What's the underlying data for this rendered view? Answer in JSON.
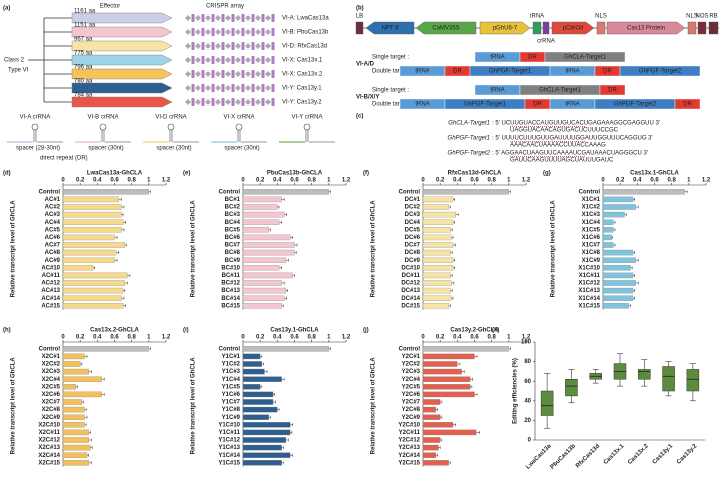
{
  "panel_a": {
    "label": "(a)",
    "effector_header": "Effector",
    "array_header": "CRISPR array",
    "class": "Class 2",
    "type": "Type VI",
    "rows": [
      {
        "size": "1161 aa",
        "name": "VI-A: LwaCas13a"
      },
      {
        "size": "1151 aa",
        "name": "VI-B: PbuCas13b"
      },
      {
        "size": "967 aa",
        "name": "VI-D: RfxCas13d"
      },
      {
        "size": "775 aa",
        "name": "VI-X: Cas13x.1"
      },
      {
        "size": "796 aa",
        "name": "VI-X: Cas13x.2"
      },
      {
        "size": "780 aa",
        "name": "VI-Y: Cas13y.1"
      },
      {
        "size": "784 aa",
        "name": "VI-Y: Cas13y.2"
      }
    ],
    "crrna": [
      "VI-A crRNA",
      "VI-B crRNA",
      "VI-D crRNA",
      "VI-X crRNA",
      "VI-Y crRNA"
    ],
    "spacer_labels": [
      "spacer (28-30nt)",
      "spacer (30nt)",
      "spacer (30nt)",
      "spacer (30nt)"
    ],
    "dr_label": "direct repeat (DR)"
  },
  "panel_b": {
    "label": "(b)",
    "construct": [
      "LB",
      "NPT II",
      "CaMV35S",
      "pGhU6-7",
      "tRNA",
      "crRNA",
      "pCitrOd",
      "NLS",
      "Cas13 Protein",
      "NLS",
      "NOS",
      "RB"
    ],
    "groups": [
      {
        "name": "VI-A/D",
        "single_label": "Single target :",
        "single": [
          "tRNA",
          "DR",
          "GhCLA-Target1"
        ],
        "double_label": "Double target :",
        "double": [
          "tRNA",
          "DR",
          "GhPGF-Target1",
          "tRNA",
          "DR",
          "GhPGF-Target2"
        ]
      },
      {
        "name": "VI-B/X/Y",
        "single_label": "Single target :",
        "single": [
          "tRNA",
          "GhCLA-Target1",
          "DR"
        ],
        "double_label": "Double target :",
        "double": [
          "tRNA",
          "GhPGF-Target1",
          "DR",
          "tRNA",
          "GhPGF-Target2",
          "DR"
        ]
      }
    ]
  },
  "panel_c": {
    "label": "(c)",
    "seqs": [
      {
        "name": "GhCLA-Target1",
        "seq": ": 5' UCUUGUACCAUGUUGUCACUGAGAAAGGCGAGGUU 3'",
        "comp": "UAGGUACAACAGUGACUCUUUCCGC"
      },
      {
        "name": "GhPGF-Target1",
        "seq": ": 5' UUUUCUUUGUUGAUUUUGGAUUGGUUUCAGGUG 3'",
        "comp": "AAACAACUAAAACCUUACCAAAG"
      },
      {
        "name": "GhPGF-Target2",
        "seq": ": 5' AGGAACUAAGUUCAAAAUCGAUAAACUAGGGCU 3'",
        "comp": "GAUUCAAGUUUUAGCUAUUUGAUC"
      }
    ]
  },
  "chart_data": [
    {
      "type": "bar",
      "panel": "(d)",
      "title": "LwaCas13a-GhCLA",
      "ylabel": "Relative transcript level of GhCLA",
      "color": "#f7d98c",
      "control_color": "#bdbdbd",
      "categories": [
        "Control",
        "AC#1",
        "AC#2",
        "AC#3",
        "AC#4",
        "AC#5",
        "AC#6",
        "AC#7",
        "AC#8",
        "AC#9",
        "AC#10",
        "AC#11",
        "AC#12",
        "AC#13",
        "AC#14",
        "AC#15"
      ],
      "values": [
        1.0,
        0.65,
        0.68,
        0.68,
        0.7,
        0.68,
        0.6,
        0.72,
        0.62,
        0.6,
        0.35,
        0.75,
        0.72,
        0.7,
        0.68,
        0.7
      ],
      "errors": [
        0.02,
        0.03,
        0.03,
        0.02,
        0.03,
        0.03,
        0.03,
        0.02,
        0.03,
        0.03,
        0.02,
        0.03,
        0.03,
        0.02,
        0.03,
        0.03
      ],
      "xlim": [
        0,
        1.2
      ],
      "xticks": [
        0,
        0.2,
        0.4,
        0.6,
        0.8,
        1,
        1.2
      ]
    },
    {
      "type": "bar",
      "panel": "(e)",
      "title": "PbuCas13b-GhCLA",
      "ylabel": "Relative transcript level of GhCLA",
      "color": "#f4c6d0",
      "control_color": "#bdbdbd",
      "categories": [
        "Control",
        "BC#1",
        "BC#2",
        "BC#3",
        "BC#4",
        "BC#5",
        "BC#6",
        "BC#7",
        "BC#8",
        "BC#9",
        "BC#10",
        "BC#11",
        "BC#12",
        "BC#13",
        "BC#14",
        "BC#15"
      ],
      "values": [
        1.0,
        0.45,
        0.4,
        0.48,
        0.42,
        0.3,
        0.55,
        0.6,
        0.6,
        0.5,
        0.42,
        0.58,
        0.45,
        0.5,
        0.48,
        0.45
      ],
      "errors": [
        0.02,
        0.03,
        0.02,
        0.03,
        0.03,
        0.02,
        0.03,
        0.03,
        0.02,
        0.03,
        0.03,
        0.02,
        0.03,
        0.02,
        0.03,
        0.02
      ],
      "xlim": [
        0,
        1.2
      ],
      "xticks": [
        0,
        0.2,
        0.4,
        0.6,
        0.8,
        1,
        1.2
      ]
    },
    {
      "type": "bar",
      "panel": "(f)",
      "title": "RfxCas13d-GhCLA",
      "ylabel": "Relative transcript level of GhCLA",
      "color": "#f7e3a3",
      "control_color": "#bdbdbd",
      "categories": [
        "Control",
        "DC#1",
        "DC#2",
        "DC#3",
        "DC#4",
        "DC#5",
        "DC#6",
        "DC#7",
        "DC#8",
        "DC#9",
        "DC#10",
        "DC#11",
        "DC#12",
        "DC#13",
        "DC#14",
        "DC#15"
      ],
      "values": [
        1.0,
        0.35,
        0.3,
        0.38,
        0.35,
        0.32,
        0.33,
        0.35,
        0.32,
        0.35,
        0.35,
        0.32,
        0.33,
        0.32,
        0.33,
        0.3
      ],
      "errors": [
        0.02,
        0.02,
        0.02,
        0.03,
        0.02,
        0.02,
        0.02,
        0.03,
        0.02,
        0.02,
        0.02,
        0.02,
        0.03,
        0.02,
        0.02,
        0.02
      ],
      "xlim": [
        0,
        1.2
      ],
      "xticks": [
        0,
        0.2,
        0.4,
        0.6,
        0.8,
        1,
        1.2
      ]
    },
    {
      "type": "bar",
      "panel": "(g)",
      "title": "Cas13x.1-GhCLA",
      "ylabel": "Relative transcript level of GhCLA",
      "color": "#7fc4dc",
      "control_color": "#bdbdbd",
      "categories": [
        "Control",
        "X1C#1",
        "X1C#2",
        "X1C#3",
        "X1C#4",
        "X1C#5",
        "X1C#6",
        "X1C#7",
        "X1C#8",
        "X1C#9",
        "X1C#10",
        "X1C#11",
        "X1C#12",
        "X1C#13",
        "X1C#14",
        "X1C#15"
      ],
      "values": [
        0.95,
        0.35,
        0.38,
        0.25,
        0.12,
        0.12,
        0.1,
        0.12,
        0.35,
        0.38,
        0.32,
        0.35,
        0.38,
        0.35,
        0.35,
        0.3
      ],
      "errors": [
        0.03,
        0.02,
        0.03,
        0.02,
        0.02,
        0.02,
        0.01,
        0.02,
        0.02,
        0.03,
        0.02,
        0.02,
        0.03,
        0.02,
        0.02,
        0.02
      ],
      "xlim": [
        0,
        1.2
      ],
      "xticks": [
        0,
        0.2,
        0.4,
        0.6,
        0.8,
        1,
        1.2
      ]
    },
    {
      "type": "bar",
      "panel": "(h)",
      "title": "Cas13x.2-GhCLA",
      "ylabel": "Relative transcript level of GhCLA",
      "color": "#f2c15e",
      "control_color": "#bdbdbd",
      "categories": [
        "Control",
        "X2C#1",
        "X2C#2",
        "X2C#3",
        "X2C#4",
        "X2C#5",
        "X2C#6",
        "X2C#7",
        "X2C#8",
        "X2C#9",
        "X2C#10",
        "X2C#11",
        "X2C#12",
        "X2C#13",
        "X2C#14",
        "X2C#15"
      ],
      "values": [
        1.0,
        0.25,
        0.2,
        0.3,
        0.45,
        0.15,
        0.45,
        0.22,
        0.25,
        0.25,
        0.25,
        0.3,
        0.3,
        0.32,
        0.28,
        0.3
      ],
      "errors": [
        0.02,
        0.03,
        0.02,
        0.03,
        0.03,
        0.02,
        0.03,
        0.02,
        0.02,
        0.03,
        0.02,
        0.02,
        0.03,
        0.02,
        0.02,
        0.03
      ],
      "xlim": [
        0,
        1.2
      ],
      "xticks": [
        0,
        0.2,
        0.4,
        0.6,
        0.8,
        1,
        1.2
      ]
    },
    {
      "type": "bar",
      "panel": "(i)",
      "title": "Cas13y.1-GhCLA",
      "ylabel": "Relative transcript level of GhCLA",
      "color": "#2f5f8f",
      "control_color": "#bdbdbd",
      "categories": [
        "Control",
        "Y1C#1",
        "Y1C#2",
        "Y1C#3",
        "Y1C#4",
        "Y1C#5",
        "Y1C#6",
        "Y1C#7",
        "Y1C#8",
        "Y1C#9",
        "Y1C#10",
        "Y1C#11",
        "Y1C#12",
        "Y1C#13",
        "Y1C#14",
        "Y1C#15"
      ],
      "values": [
        1.0,
        0.2,
        0.22,
        0.25,
        0.45,
        0.2,
        0.35,
        0.35,
        0.4,
        0.3,
        0.55,
        0.55,
        0.5,
        0.45,
        0.55,
        0.45
      ],
      "errors": [
        0.02,
        0.02,
        0.02,
        0.03,
        0.03,
        0.02,
        0.02,
        0.03,
        0.02,
        0.02,
        0.03,
        0.02,
        0.03,
        0.02,
        0.03,
        0.02
      ],
      "xlim": [
        0,
        1.2
      ],
      "xticks": [
        0,
        0.2,
        0.4,
        0.6,
        0.8,
        1,
        1.2
      ]
    },
    {
      "type": "bar",
      "panel": "(j)",
      "title": "Cas13y.2-GhCLA",
      "ylabel": "Relative transcript level of GhCLA",
      "color": "#e2604f",
      "control_color": "#bdbdbd",
      "categories": [
        "Control",
        "Y2C#1",
        "Y2C#2",
        "Y2C#3",
        "Y2C#4",
        "Y2C#5",
        "Y2C#6",
        "Y2C#7",
        "Y2C#8",
        "Y2C#9",
        "Y2C#10",
        "Y2C#11",
        "Y2C#12",
        "Y2C#13",
        "Y2C#14",
        "Y2C#15"
      ],
      "values": [
        1.0,
        0.6,
        0.4,
        0.45,
        0.55,
        0.55,
        0.6,
        0.2,
        0.15,
        0.2,
        0.35,
        0.62,
        0.2,
        0.18,
        0.15,
        0.3
      ],
      "errors": [
        0.02,
        0.03,
        0.03,
        0.03,
        0.03,
        0.02,
        0.03,
        0.02,
        0.02,
        0.02,
        0.03,
        0.04,
        0.02,
        0.02,
        0.02,
        0.02
      ],
      "xlim": [
        0,
        1.2
      ],
      "xticks": [
        0,
        0.2,
        0.4,
        0.6,
        0.8,
        1,
        1.2
      ]
    },
    {
      "type": "box",
      "panel": "(k)",
      "ylabel": "Editing efficiencies (%)",
      "color": "#5c8c3e",
      "categories": [
        "LwaCas13a",
        "PbuCas13b",
        "RfxCas13d",
        "Cas13x.1",
        "Cas13x.2",
        "Cas13y.1",
        "Cas13y.2"
      ],
      "boxes": [
        {
          "min": 12,
          "q1": 25,
          "median": 35,
          "q3": 50,
          "max": 68
        },
        {
          "min": 38,
          "q1": 45,
          "median": 55,
          "q3": 62,
          "max": 72
        },
        {
          "min": 58,
          "q1": 62,
          "median": 65,
          "q3": 68,
          "max": 72
        },
        {
          "min": 55,
          "q1": 62,
          "median": 70,
          "q3": 78,
          "max": 88
        },
        {
          "min": 55,
          "q1": 62,
          "median": 70,
          "q3": 72,
          "max": 82
        },
        {
          "min": 45,
          "q1": 50,
          "median": 65,
          "q3": 75,
          "max": 80
        },
        {
          "min": 40,
          "q1": 50,
          "median": 62,
          "q3": 72,
          "max": 78
        }
      ],
      "ylim": [
        0,
        100
      ],
      "yticks": [
        0,
        20,
        40,
        60,
        80,
        100
      ]
    }
  ]
}
